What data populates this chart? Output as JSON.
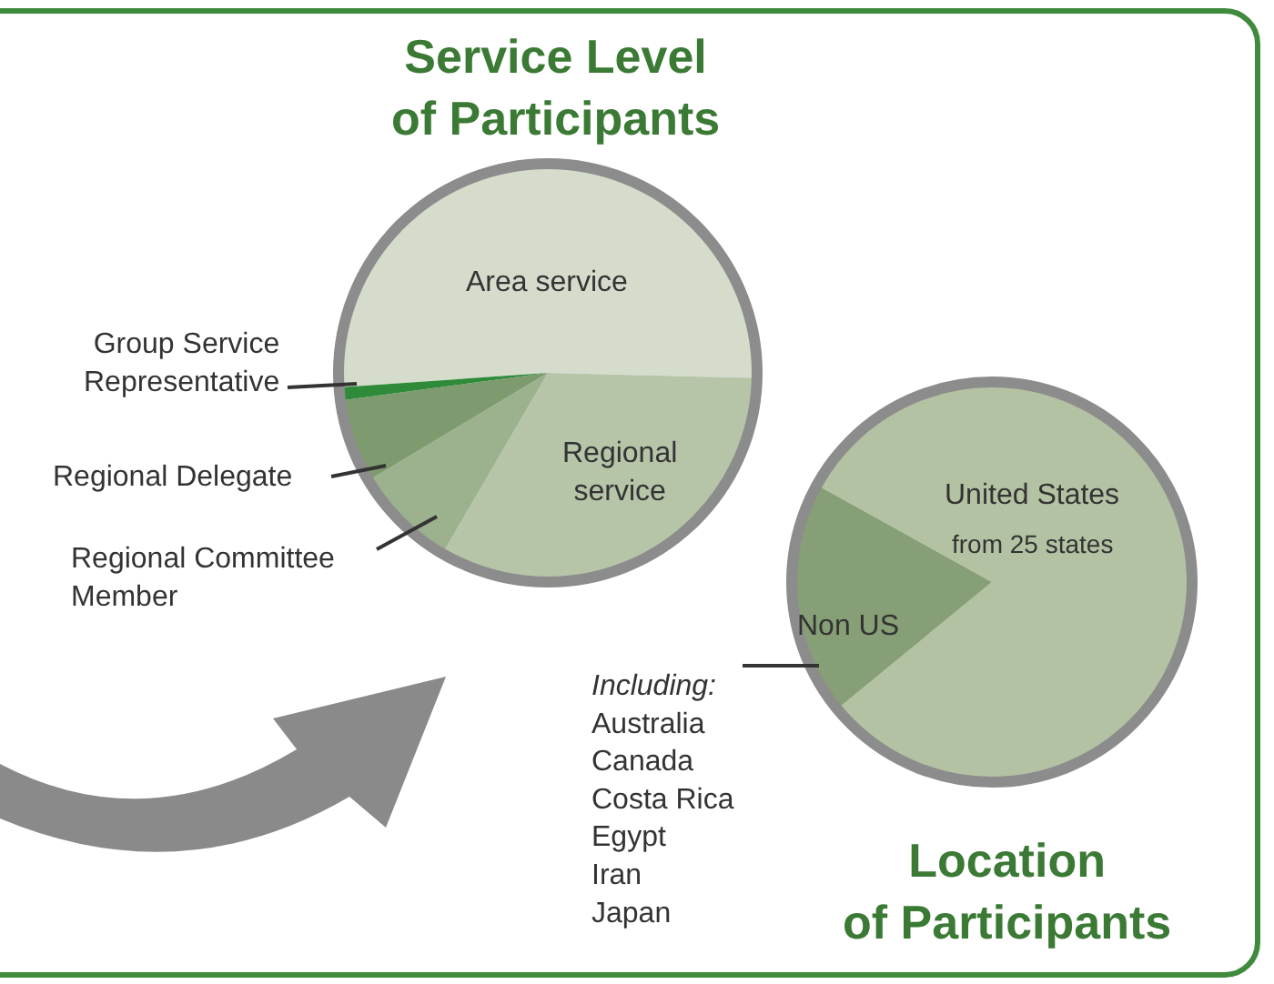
{
  "chart_data": [
    {
      "type": "pie",
      "title": "Service Level\nof Participants",
      "categories": [
        "Area service",
        "Regional\nservice",
        "Regional Committee\nMember",
        "Regional Delegate",
        "Group Service\nRepresentative"
      ],
      "values": [
        51.5,
        33,
        8,
        6.5,
        1
      ],
      "colors": [
        "#d5dccb",
        "#b6c4a8",
        "#9cb18e",
        "#7d9b6e",
        "#2f8a3a"
      ]
    },
    {
      "type": "pie",
      "title": "Location\nof Participants",
      "categories": [
        "United States",
        "Non US"
      ],
      "values": [
        81,
        19
      ],
      "colors": [
        "#b3c2a2",
        "#869f76"
      ],
      "annotations": [
        "from 25 states",
        "Including:\nAustralia\nCanada\nCosta Rica\nEgypt\nIran\nJapan"
      ]
    }
  ]
}
